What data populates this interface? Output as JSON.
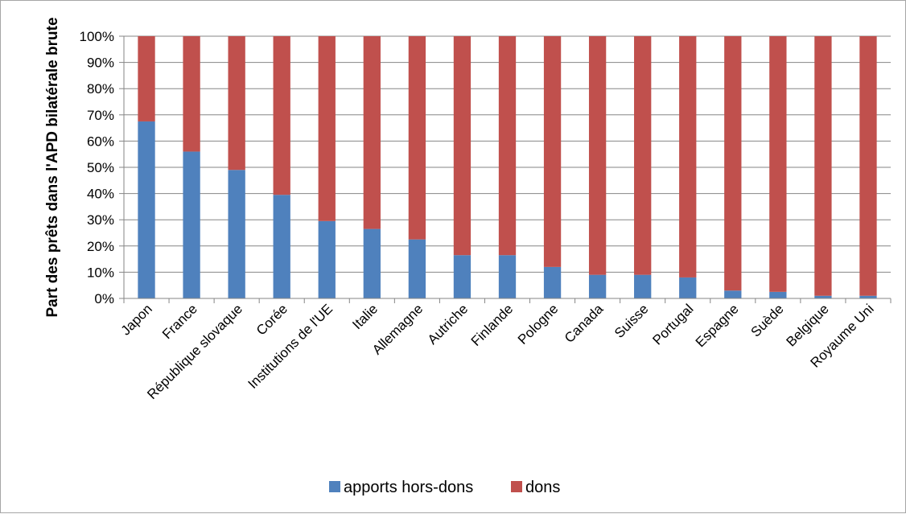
{
  "chart_data": {
    "type": "bar",
    "stacked": true,
    "percent_stacked": true,
    "title": "",
    "xlabel": "",
    "ylabel": "Part des prêts dans l'APD bilatérale brute",
    "ylim": [
      0,
      100
    ],
    "y_ticks": [
      "0%",
      "10%",
      "20%",
      "30%",
      "40%",
      "50%",
      "60%",
      "70%",
      "80%",
      "90%",
      "100%"
    ],
    "grid": true,
    "legend_position": "bottom",
    "categories": [
      "Japon",
      "France",
      "République slovaque",
      "Corée",
      "Institutions de l'UE",
      "Italie",
      "Allemagne",
      "Autriche",
      "Finlande",
      "Pologne",
      "Canada",
      "Suisse",
      "Portugal",
      "Espagne",
      "Suède",
      "Belgique",
      "Royaume Uni"
    ],
    "series": [
      {
        "name": "apports hors-dons",
        "color": "#4f81bd",
        "values": [
          67.5,
          56,
          49,
          39.5,
          29.5,
          26.5,
          22.5,
          16.5,
          16.5,
          12,
          9,
          9,
          8,
          3,
          2.5,
          1,
          1
        ]
      },
      {
        "name": "dons",
        "color": "#c0504d",
        "values": [
          32.5,
          44,
          51,
          60.5,
          70.5,
          73.5,
          77.5,
          83.5,
          83.5,
          88,
          91,
          91,
          92,
          97,
          97.5,
          99,
          99
        ]
      }
    ]
  }
}
